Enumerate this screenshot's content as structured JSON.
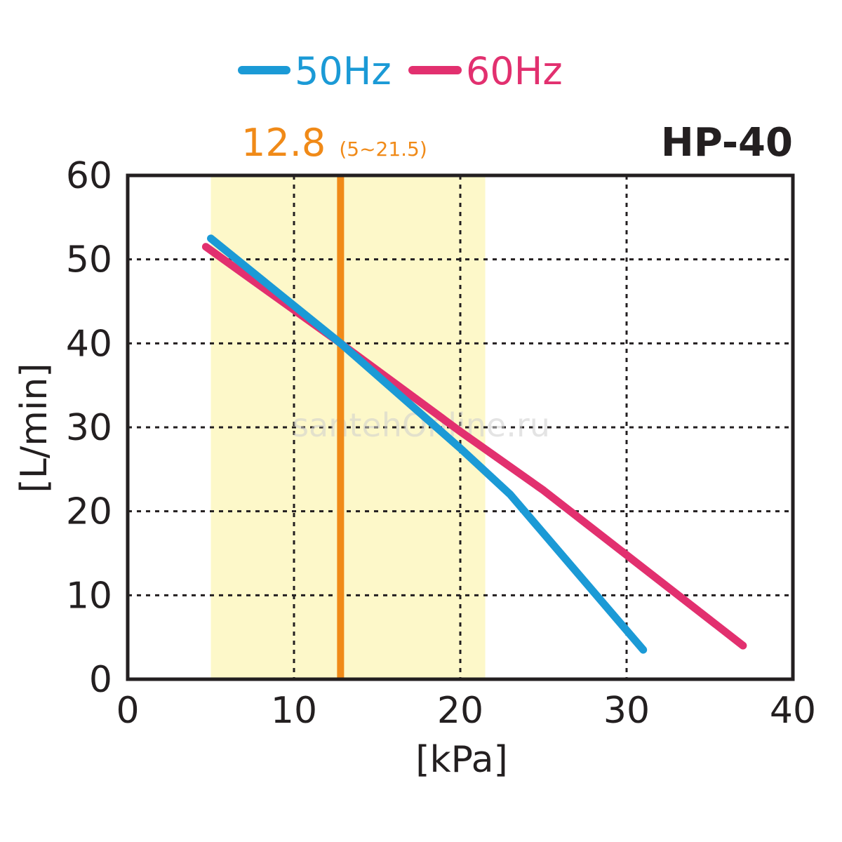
{
  "chart_data": {
    "type": "line",
    "title": "HP-40",
    "xlabel": "[kPa]",
    "ylabel": "[L/min]",
    "xlim": [
      0,
      40
    ],
    "ylim": [
      0,
      60
    ],
    "xticks": [
      0,
      10,
      20,
      30,
      40
    ],
    "yticks": [
      0,
      10,
      20,
      30,
      40,
      50,
      60
    ],
    "xtick_labels": [
      "0",
      "10",
      "20",
      "30",
      "40"
    ],
    "ytick_labels": [
      "0",
      "10",
      "20",
      "30",
      "40",
      "50",
      "60"
    ],
    "grid": true,
    "legend_position": "top-center",
    "series": [
      {
        "name": "50Hz",
        "color": "#1b9ad6",
        "x": [
          5,
          12.8,
          20,
          23,
          31
        ],
        "y": [
          52.5,
          40,
          27.5,
          22,
          3.5
        ]
      },
      {
        "name": "60Hz",
        "color": "#e2306f",
        "x": [
          4.7,
          12.8,
          20,
          25,
          37
        ],
        "y": [
          51.5,
          40,
          29.5,
          22.5,
          4
        ]
      }
    ],
    "operating_range": {
      "x_min": 5,
      "x_max": 21.5,
      "fill_color": "#fdf8c9"
    },
    "operating_point": {
      "x": 12.8,
      "label": "12.8",
      "range_label": "(5~21.5)",
      "color": "#f08a18"
    }
  },
  "watermark": "santehOnline.ru"
}
